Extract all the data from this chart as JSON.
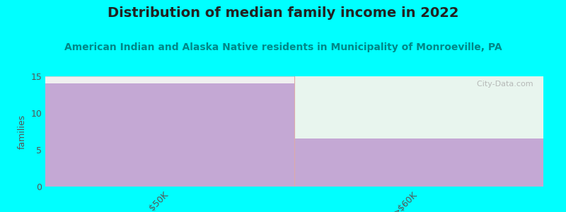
{
  "title": "Distribution of median family income in 2022",
  "subtitle": "American Indian and Alaska Native residents in Municipality of Monroeville, PA",
  "categories": [
    "$50K",
    ">$60K"
  ],
  "bar_values": [
    14,
    6.5
  ],
  "ymax": 15,
  "bar_color": "#c4a8d4",
  "upper_color": "#e8f5ee",
  "background_color": "#00ffff",
  "plot_bg_color": "#f0f0f0",
  "ylabel": "families",
  "ylim": [
    0,
    15
  ],
  "yticks": [
    0,
    5,
    10,
    15
  ],
  "title_fontsize": 14,
  "subtitle_fontsize": 10,
  "title_color": "#222222",
  "subtitle_color": "#008888",
  "watermark": "  City-Data.com",
  "tick_label_color": "#555555",
  "tick_label_fontsize": 9,
  "divider_color": "#ddaaaa",
  "bottom_line_color": "#cccccc"
}
